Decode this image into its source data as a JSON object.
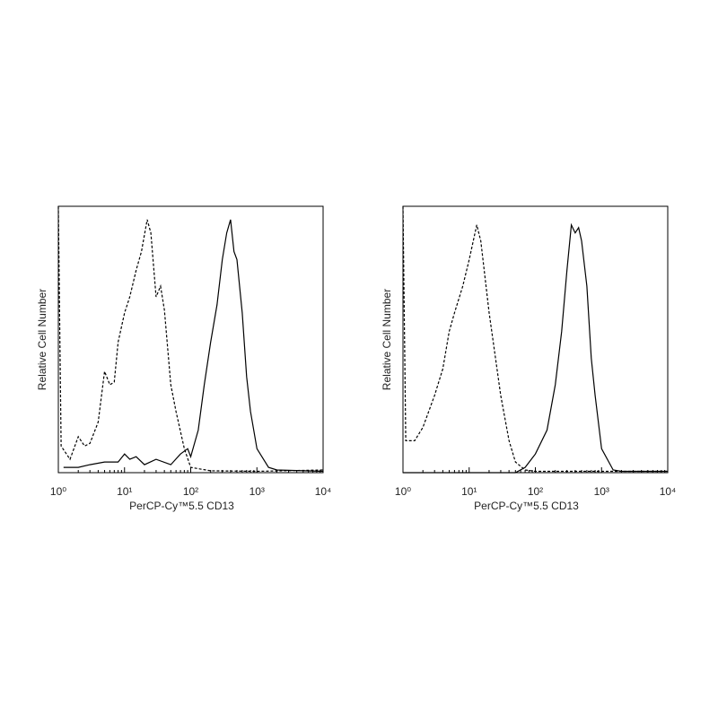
{
  "chart_data": [
    {
      "type": "line",
      "x_label": "PerCP-Cy™5.5 CD13",
      "y_label": "Relative Cell Number",
      "xscale": "log",
      "xlim": [
        1,
        10000
      ],
      "ylim": [
        0,
        100
      ],
      "xticks": [
        {
          "value": 1,
          "label": "10⁰"
        },
        {
          "value": 10,
          "label": "10¹"
        },
        {
          "value": 100,
          "label": "10²"
        },
        {
          "value": 1000,
          "label": "10³"
        },
        {
          "value": 10000,
          "label": "10⁴"
        }
      ],
      "series": [
        {
          "style": "dashed",
          "color": "#000000",
          "x": [
            1,
            1.1,
            1.5,
            2,
            2.5,
            3,
            4,
            5,
            6,
            7,
            8,
            10,
            12,
            15,
            18,
            22,
            25,
            30,
            35,
            40,
            50,
            60,
            80,
            100,
            200,
            1000,
            10000
          ],
          "values": [
            100,
            10,
            5,
            13.5,
            10,
            11,
            19,
            38,
            33,
            34,
            49,
            60,
            66,
            76,
            83,
            95,
            90,
            66,
            70,
            61,
            33,
            23,
            9,
            2,
            0.7,
            0.5,
            1
          ]
        },
        {
          "style": "solid",
          "color": "#000000",
          "x": [
            1.2,
            2,
            3,
            5,
            8,
            10,
            12,
            15,
            20,
            30,
            50,
            70,
            90,
            100,
            130,
            160,
            200,
            250,
            300,
            350,
            400,
            450,
            500,
            600,
            700,
            800,
            1000,
            1500,
            2000,
            10000
          ],
          "values": [
            2,
            2,
            3,
            4,
            4,
            7,
            5,
            6,
            3,
            5,
            3,
            7,
            9,
            6,
            16,
            33,
            49,
            63,
            80,
            90,
            95,
            83,
            80,
            60,
            36,
            23,
            9,
            2,
            1,
            0.5
          ]
        }
      ]
    },
    {
      "type": "line",
      "x_label": "PerCP-Cy™5.5 CD13",
      "y_label": "Relative Cell Number",
      "xscale": "log",
      "xlim": [
        1,
        10000
      ],
      "ylim": [
        0,
        100
      ],
      "xticks": [
        {
          "value": 1,
          "label": "10⁰"
        },
        {
          "value": 10,
          "label": "10¹"
        },
        {
          "value": 100,
          "label": "10²"
        },
        {
          "value": 1000,
          "label": "10³"
        },
        {
          "value": 10000,
          "label": "10⁴"
        }
      ],
      "series": [
        {
          "style": "dashed",
          "color": "#000000",
          "x": [
            1,
            1.1,
            1.5,
            2,
            3,
            4,
            5,
            6,
            8,
            10,
            13,
            15,
            20,
            25,
            30,
            40,
            50,
            70,
            100,
            10000
          ],
          "values": [
            100,
            12,
            12,
            17,
            29,
            39,
            53,
            60,
            70,
            80,
            93,
            87,
            60,
            43,
            29,
            12,
            4,
            1,
            0.5,
            0.5
          ]
        },
        {
          "style": "solid",
          "color": "#000000",
          "x": [
            1,
            50,
            70,
            100,
            150,
            200,
            250,
            300,
            350,
            400,
            450,
            500,
            600,
            700,
            800,
            1000,
            1500,
            2000,
            10000
          ],
          "values": [
            0,
            0,
            2,
            7,
            16,
            33,
            53,
            76,
            93,
            90,
            92,
            87,
            70,
            43,
            29,
            9,
            1,
            0.5,
            0.5
          ]
        }
      ]
    }
  ]
}
